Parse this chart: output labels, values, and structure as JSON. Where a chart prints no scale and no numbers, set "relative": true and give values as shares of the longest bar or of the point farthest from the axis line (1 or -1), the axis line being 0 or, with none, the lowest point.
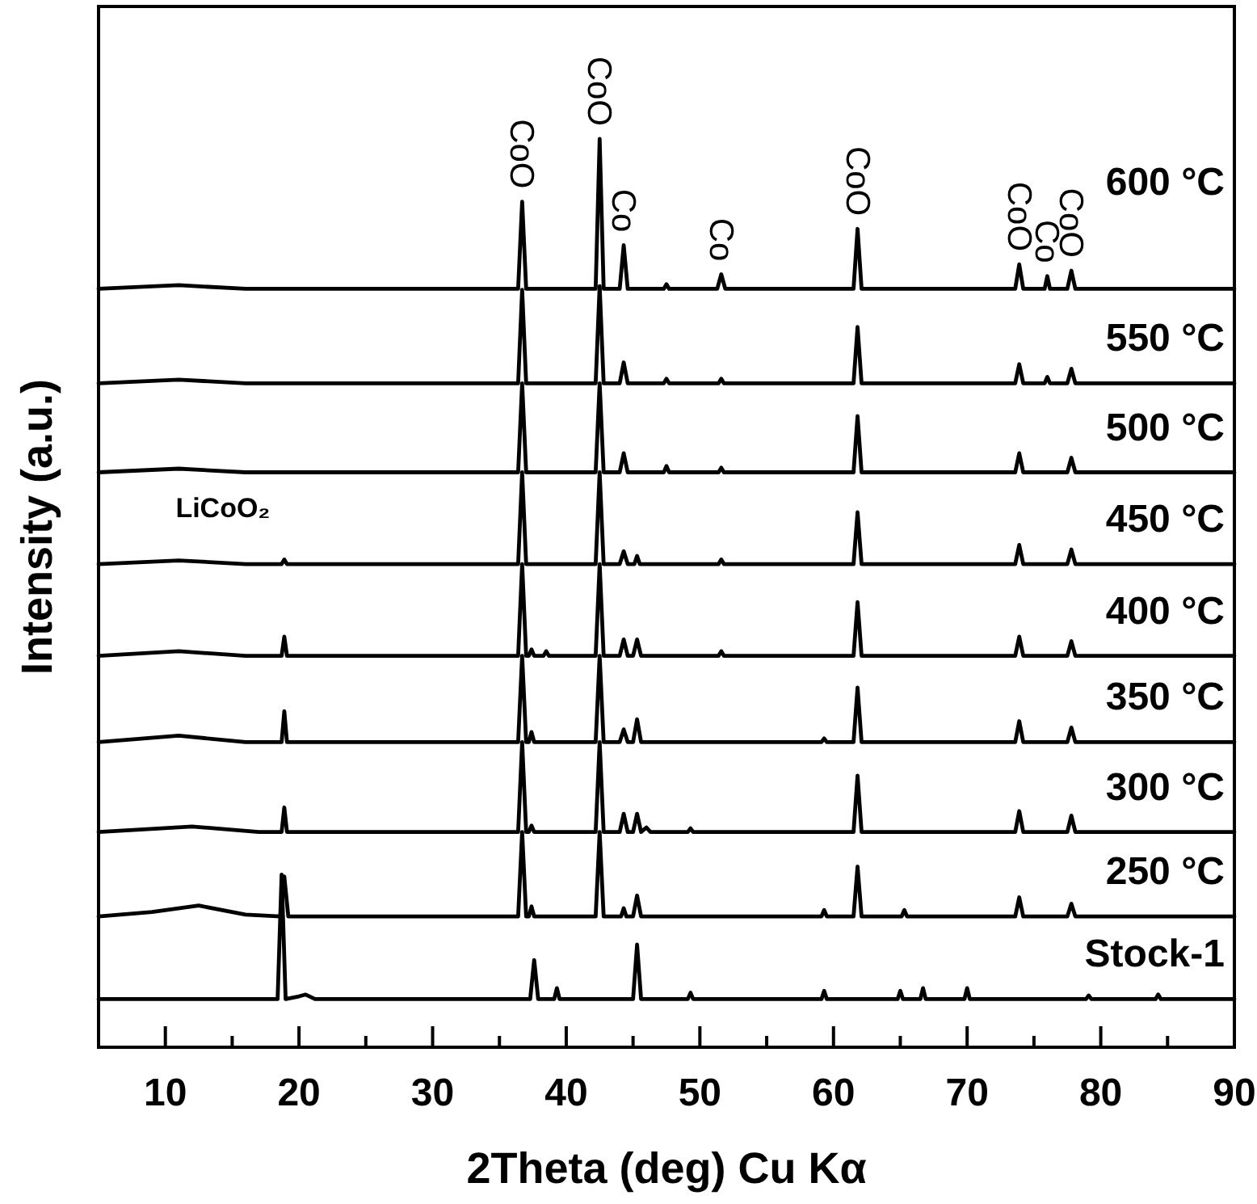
{
  "chart_data": {
    "type": "line",
    "relative": true,
    "xlabel": "2Theta (deg) Cu Kα",
    "ylabel": "Intensity (a.u.)",
    "xlim": [
      5,
      90
    ],
    "xticks": [
      10,
      {
        "value": 15,
        "label": null
      },
      20,
      {
        "value": 25,
        "label": null
      },
      30,
      {
        "value": 35,
        "label": null
      },
      40,
      {
        "value": 45,
        "label": null
      },
      50,
      {
        "value": 55,
        "label": null
      },
      60,
      {
        "value": 65,
        "label": null
      },
      70,
      {
        "value": 75,
        "label": null
      },
      80,
      {
        "value": 85,
        "label": null
      },
      90
    ],
    "series": [
      {
        "name": "600 °C",
        "color": "#000000",
        "x": [
          5,
          11,
          16,
          36.4,
          36.7,
          37.0,
          42.2,
          42.5,
          42.8,
          44.0,
          44.3,
          44.6,
          47.3,
          47.5,
          47.7,
          51.3,
          51.6,
          51.9,
          61.5,
          61.8,
          62.1,
          73.6,
          73.9,
          74.2,
          75.8,
          76.0,
          76.2,
          77.5,
          77.8,
          78.1,
          90
        ],
        "values": [
          0.835,
          0.839,
          0.835,
          0.835,
          0.931,
          0.835,
          0.835,
          1.0,
          0.835,
          0.835,
          0.883,
          0.835,
          0.835,
          0.84,
          0.835,
          0.835,
          0.851,
          0.835,
          0.835,
          0.901,
          0.835,
          0.835,
          0.862,
          0.835,
          0.835,
          0.849,
          0.835,
          0.835,
          0.855,
          0.835,
          0.835
        ]
      },
      {
        "name": "550 °C",
        "color": "#000000",
        "x": [
          5,
          11,
          16,
          36.4,
          36.7,
          37.0,
          42.2,
          42.5,
          42.8,
          44.0,
          44.3,
          44.6,
          47.3,
          47.5,
          47.7,
          51.4,
          51.6,
          51.8,
          61.5,
          61.8,
          62.1,
          73.6,
          73.9,
          74.2,
          75.8,
          76.0,
          76.2,
          77.5,
          77.8,
          78.1,
          90
        ],
        "values": [
          0.731,
          0.735,
          0.731,
          0.731,
          0.834,
          0.731,
          0.731,
          0.838,
          0.731,
          0.731,
          0.754,
          0.731,
          0.731,
          0.736,
          0.731,
          0.731,
          0.736,
          0.731,
          0.731,
          0.793,
          0.731,
          0.731,
          0.752,
          0.731,
          0.731,
          0.738,
          0.731,
          0.731,
          0.747,
          0.731,
          0.731
        ]
      },
      {
        "name": "500 °C",
        "color": "#000000",
        "x": [
          5,
          11,
          16,
          36.4,
          36.7,
          37.0,
          42.2,
          42.5,
          42.8,
          44.0,
          44.3,
          44.6,
          47.3,
          47.5,
          47.7,
          51.4,
          51.6,
          51.8,
          61.5,
          61.8,
          62.1,
          73.6,
          73.9,
          74.2,
          77.5,
          77.8,
          78.1,
          90
        ],
        "values": [
          0.633,
          0.637,
          0.633,
          0.633,
          0.731,
          0.633,
          0.633,
          0.731,
          0.633,
          0.633,
          0.654,
          0.633,
          0.633,
          0.64,
          0.633,
          0.633,
          0.638,
          0.633,
          0.633,
          0.695,
          0.633,
          0.633,
          0.654,
          0.633,
          0.633,
          0.649,
          0.633,
          0.633
        ]
      },
      {
        "name": "450 °C",
        "color": "#000000",
        "x": [
          5,
          11,
          16,
          18.7,
          18.9,
          19.1,
          36.4,
          36.7,
          37.0,
          42.2,
          42.5,
          42.8,
          44.0,
          44.3,
          44.6,
          45.1,
          45.3,
          45.5,
          51.4,
          51.6,
          51.8,
          61.5,
          61.8,
          62.1,
          73.6,
          73.9,
          74.2,
          77.5,
          77.8,
          78.1,
          90
        ],
        "values": [
          0.532,
          0.536,
          0.532,
          0.532,
          0.537,
          0.532,
          0.532,
          0.633,
          0.532,
          0.532,
          0.633,
          0.532,
          0.532,
          0.546,
          0.532,
          0.532,
          0.541,
          0.532,
          0.532,
          0.537,
          0.532,
          0.532,
          0.589,
          0.532,
          0.532,
          0.553,
          0.532,
          0.532,
          0.548,
          0.532,
          0.532
        ]
      },
      {
        "name": "400 °C",
        "color": "#000000",
        "x": [
          5,
          11,
          16,
          18.7,
          18.9,
          19.1,
          36.4,
          36.7,
          37.0,
          37.2,
          37.4,
          37.6,
          38.3,
          38.5,
          38.7,
          42.2,
          42.5,
          42.8,
          44.0,
          44.3,
          44.6,
          45.0,
          45.3,
          45.6,
          51.4,
          51.6,
          51.8,
          61.5,
          61.8,
          62.1,
          73.6,
          73.9,
          74.2,
          77.5,
          77.8,
          78.1,
          90
        ],
        "values": [
          0.431,
          0.436,
          0.431,
          0.431,
          0.452,
          0.431,
          0.431,
          0.532,
          0.431,
          0.431,
          0.438,
          0.431,
          0.431,
          0.436,
          0.431,
          0.431,
          0.532,
          0.431,
          0.431,
          0.449,
          0.431,
          0.431,
          0.449,
          0.431,
          0.431,
          0.436,
          0.431,
          0.431,
          0.49,
          0.431,
          0.431,
          0.452,
          0.431,
          0.431,
          0.447,
          0.431,
          0.431
        ]
      },
      {
        "name": "350 °C",
        "color": "#000000",
        "x": [
          5,
          11,
          16,
          18.7,
          18.9,
          19.1,
          36.4,
          36.7,
          37.0,
          37.2,
          37.4,
          37.6,
          42.2,
          42.5,
          42.8,
          44.0,
          44.3,
          44.6,
          45.0,
          45.3,
          45.6,
          59.1,
          59.3,
          59.5,
          61.5,
          61.8,
          62.1,
          73.6,
          73.9,
          74.2,
          77.5,
          77.8,
          78.1,
          90
        ],
        "values": [
          0.336,
          0.343,
          0.336,
          0.336,
          0.37,
          0.336,
          0.336,
          0.431,
          0.336,
          0.336,
          0.347,
          0.336,
          0.336,
          0.431,
          0.336,
          0.336,
          0.35,
          0.336,
          0.336,
          0.361,
          0.336,
          0.336,
          0.34,
          0.336,
          0.336,
          0.396,
          0.336,
          0.336,
          0.359,
          0.336,
          0.336,
          0.352,
          0.336,
          0.336
        ]
      },
      {
        "name": "300 °C",
        "color": "#000000",
        "x": [
          5,
          12,
          17,
          18.7,
          18.9,
          19.1,
          36.4,
          36.7,
          37.0,
          37.2,
          37.4,
          37.6,
          42.2,
          42.5,
          42.8,
          44.0,
          44.3,
          44.6,
          45.0,
          45.3,
          45.6,
          46.0,
          46.3,
          49.1,
          49.3,
          49.5,
          61.5,
          61.8,
          62.1,
          73.6,
          73.9,
          74.2,
          77.5,
          77.8,
          78.1,
          90
        ],
        "values": [
          0.237,
          0.243,
          0.237,
          0.237,
          0.264,
          0.237,
          0.237,
          0.336,
          0.237,
          0.237,
          0.244,
          0.237,
          0.237,
          0.336,
          0.237,
          0.237,
          0.257,
          0.237,
          0.237,
          0.257,
          0.237,
          0.242,
          0.237,
          0.237,
          0.241,
          0.237,
          0.237,
          0.299,
          0.237,
          0.237,
          0.26,
          0.237,
          0.237,
          0.255,
          0.237,
          0.237
        ]
      },
      {
        "name": "250 °C",
        "color": "#000000",
        "x": [
          5,
          9,
          12.5,
          16,
          18.6,
          18.9,
          19.2,
          36.4,
          36.7,
          37.0,
          37.2,
          37.4,
          37.6,
          42.2,
          42.5,
          42.8,
          44.1,
          44.3,
          44.5,
          45.0,
          45.3,
          45.6,
          59.1,
          59.3,
          59.5,
          61.5,
          61.8,
          62.1,
          65.1,
          65.3,
          65.5,
          73.6,
          73.9,
          74.2,
          77.5,
          77.8,
          78.1,
          90
        ],
        "values": [
          0.144,
          0.149,
          0.156,
          0.146,
          0.144,
          0.188,
          0.144,
          0.144,
          0.237,
          0.144,
          0.144,
          0.155,
          0.144,
          0.144,
          0.237,
          0.144,
          0.144,
          0.153,
          0.144,
          0.144,
          0.167,
          0.144,
          0.144,
          0.151,
          0.144,
          0.144,
          0.199,
          0.144,
          0.144,
          0.151,
          0.144,
          0.144,
          0.165,
          0.144,
          0.144,
          0.158,
          0.144,
          0.144
        ]
      },
      {
        "name": "Stock-1",
        "color": "#000000",
        "x": [
          5,
          18.4,
          18.7,
          19.0,
          20.0,
          20.5,
          21.2,
          37.3,
          37.6,
          37.9,
          39.1,
          39.3,
          39.5,
          45.0,
          45.3,
          45.6,
          49.1,
          49.3,
          49.5,
          59.1,
          59.3,
          59.5,
          64.8,
          65.0,
          65.2,
          66.5,
          66.7,
          66.9,
          69.8,
          70.0,
          70.2,
          78.9,
          79.1,
          79.3,
          84.1,
          84.3,
          84.5,
          90
        ],
        "values": [
          0.053,
          0.053,
          0.19,
          0.053,
          0.056,
          0.058,
          0.053,
          0.053,
          0.096,
          0.053,
          0.053,
          0.065,
          0.053,
          0.053,
          0.113,
          0.053,
          0.053,
          0.06,
          0.053,
          0.053,
          0.062,
          0.053,
          0.053,
          0.062,
          0.053,
          0.053,
          0.065,
          0.053,
          0.053,
          0.065,
          0.053,
          0.053,
          0.057,
          0.053,
          0.053,
          0.058,
          0.053,
          0.053
        ]
      }
    ],
    "annotations": [
      {
        "text": "CoO",
        "x": 36.7,
        "y": 0.931
      },
      {
        "text": "CoO",
        "x": 42.5,
        "y": 1.0
      },
      {
        "text": "Co",
        "x": 44.3,
        "y": 0.883
      },
      {
        "text": "Co",
        "x": 51.6,
        "y": 0.851
      },
      {
        "text": "CoO",
        "x": 61.8,
        "y": 0.901
      },
      {
        "text": "CoO",
        "x": 73.9,
        "y": 0.862
      },
      {
        "text": "Co",
        "x": 76.0,
        "y": 0.849
      },
      {
        "text": "CoO",
        "x": 77.8,
        "y": 0.855
      },
      {
        "text": "LiCoO₂",
        "x": 18.9,
        "y": 0.537
      }
    ]
  }
}
